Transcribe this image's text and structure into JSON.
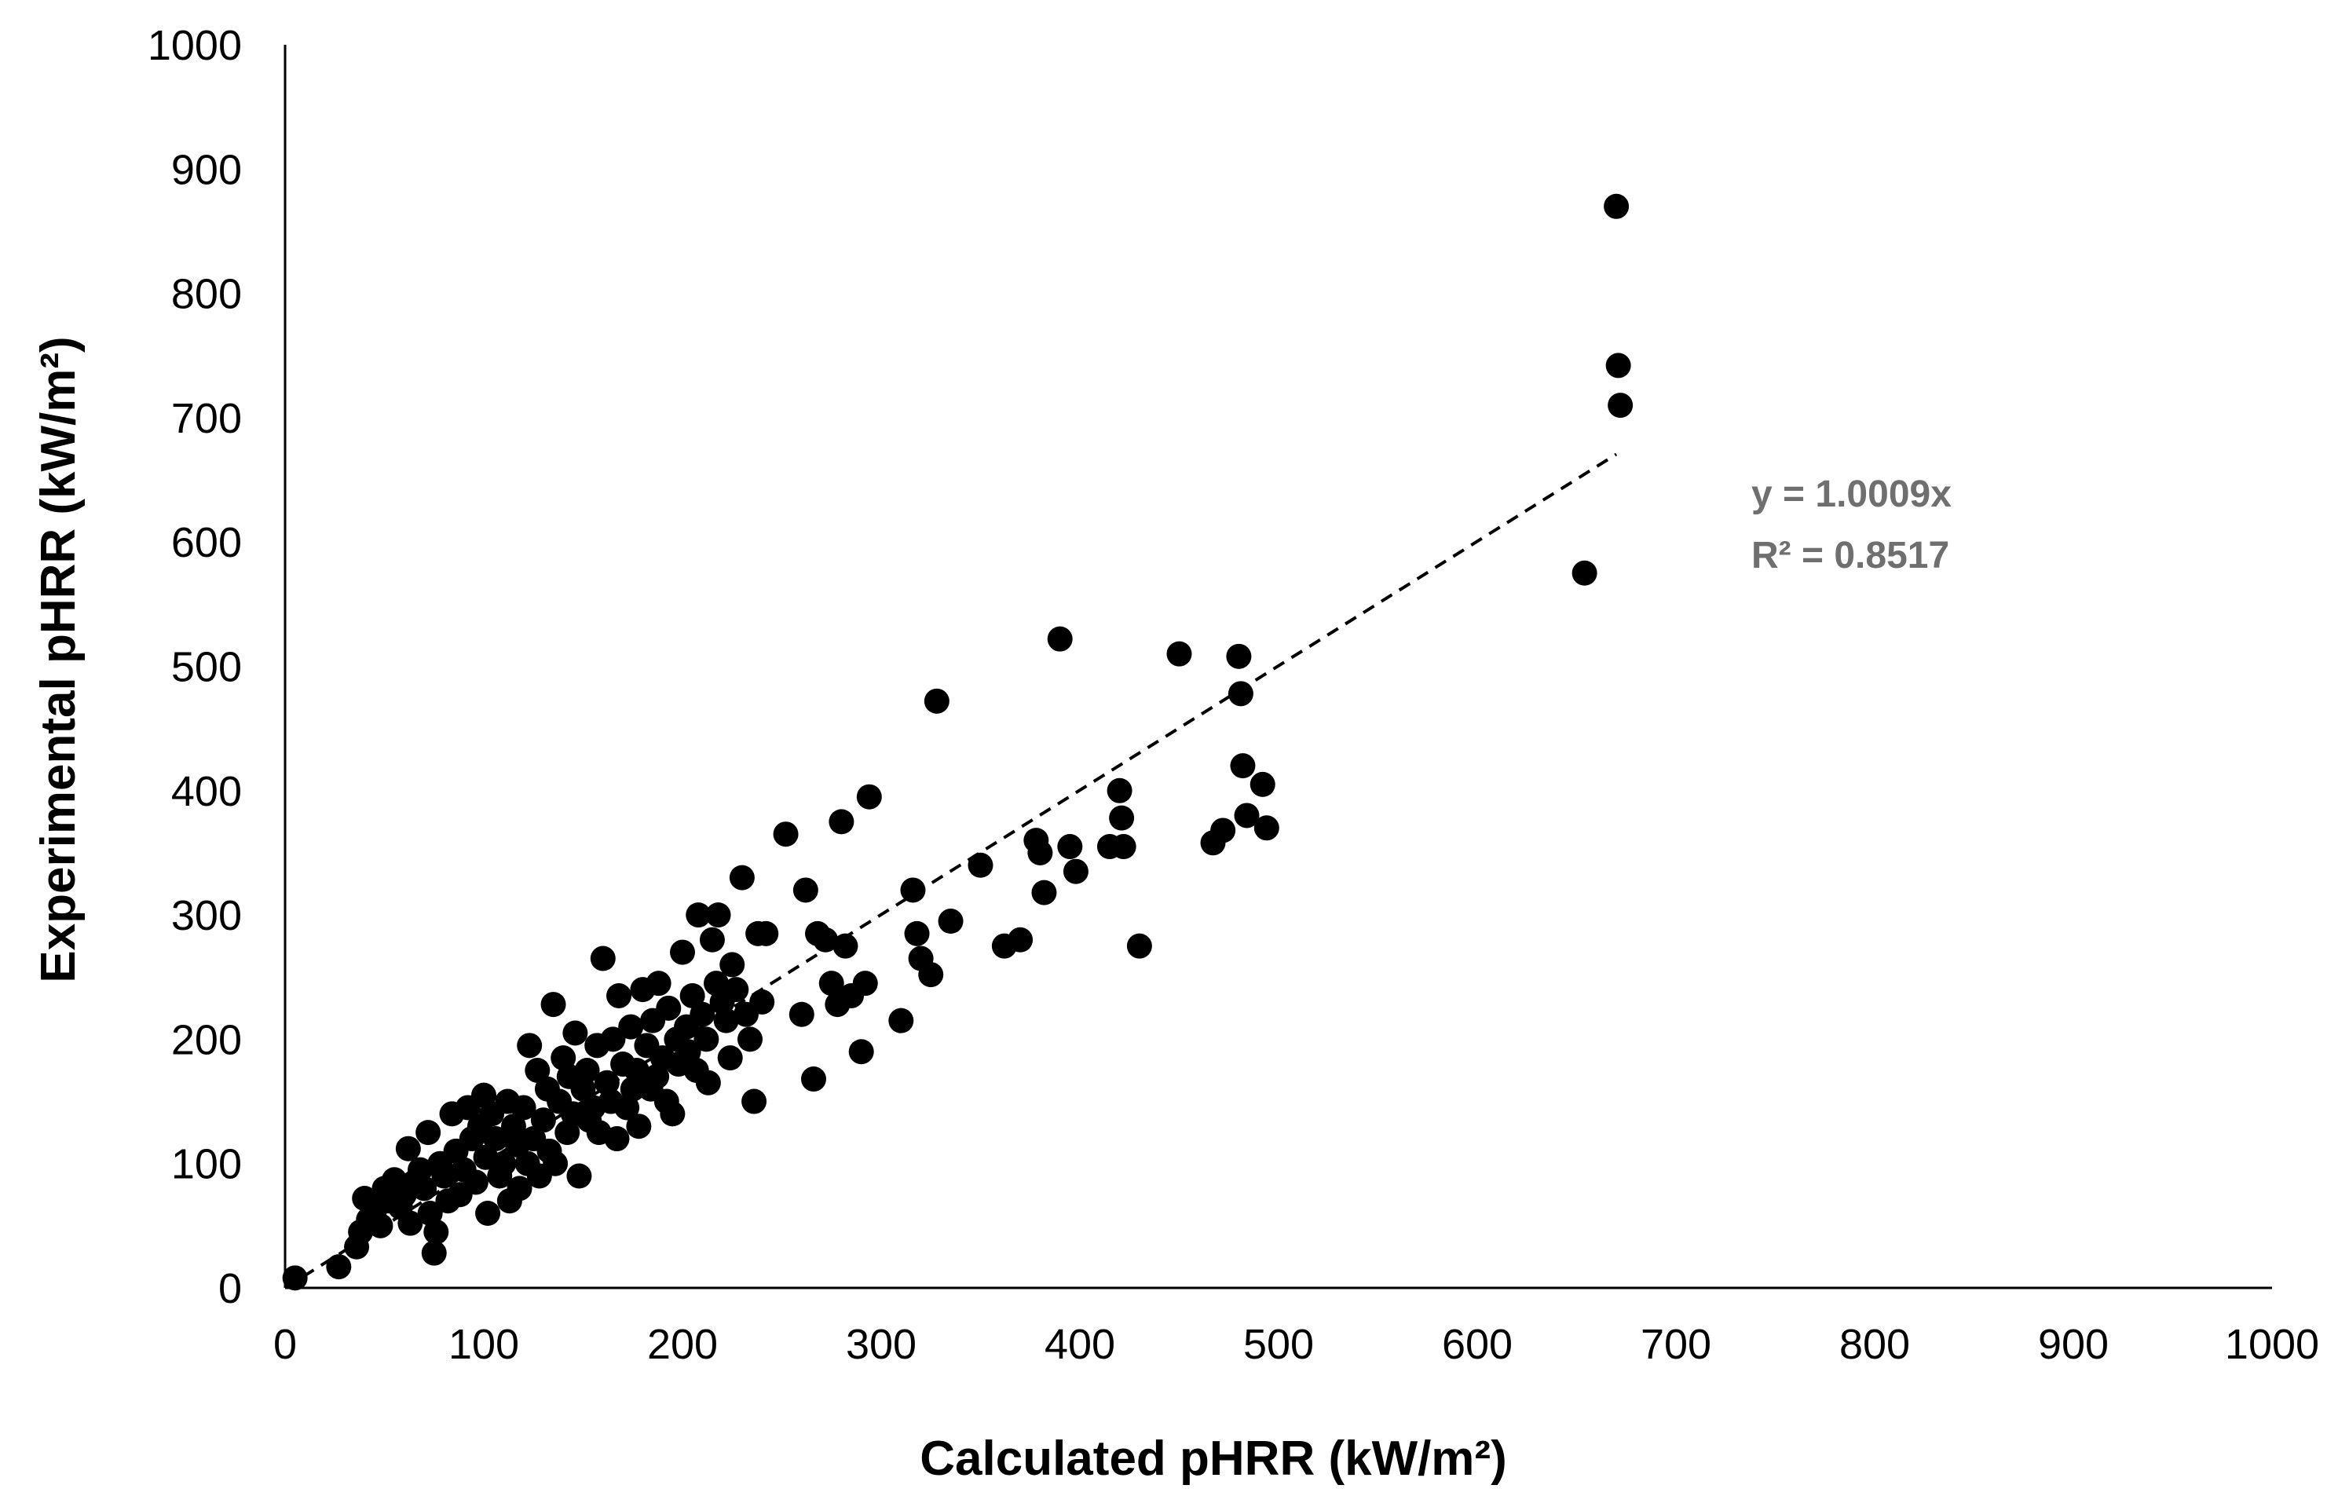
{
  "chart_data": {
    "type": "scatter",
    "title": "",
    "xlabel": "Calculated pHRR (kW/m²)",
    "ylabel": "Experimental pHRR (kW/m²)",
    "xlim": [
      0,
      1000
    ],
    "ylim": [
      0,
      1000
    ],
    "xticks": [
      "0",
      "100",
      "200",
      "300",
      "400",
      "500",
      "600",
      "700",
      "800",
      "900",
      "1000"
    ],
    "yticks": [
      "0",
      "100",
      "200",
      "300",
      "400",
      "500",
      "600",
      "700",
      "800",
      "900",
      "1000"
    ],
    "grid": false,
    "legend": "none",
    "marker_color": "#000000",
    "trendline": {
      "type": "linear-through-origin",
      "slope": 1.0009,
      "x_range": [
        0,
        670
      ],
      "style": "dashed",
      "equation": "y = 1.0009x",
      "r_squared": "R² = 0.8517"
    },
    "points": [
      [
        5,
        8
      ],
      [
        27,
        17
      ],
      [
        36,
        33
      ],
      [
        38,
        45
      ],
      [
        40,
        72
      ],
      [
        42,
        55
      ],
      [
        45,
        62
      ],
      [
        48,
        50
      ],
      [
        50,
        80
      ],
      [
        52,
        70
      ],
      [
        55,
        87
      ],
      [
        58,
        65
      ],
      [
        60,
        75
      ],
      [
        62,
        112
      ],
      [
        63,
        52
      ],
      [
        65,
        85
      ],
      [
        68,
        95
      ],
      [
        70,
        80
      ],
      [
        72,
        125
      ],
      [
        73,
        60
      ],
      [
        75,
        28
      ],
      [
        76,
        45
      ],
      [
        78,
        100
      ],
      [
        80,
        90
      ],
      [
        82,
        70
      ],
      [
        84,
        140
      ],
      [
        86,
        110
      ],
      [
        88,
        75
      ],
      [
        90,
        95
      ],
      [
        92,
        145
      ],
      [
        94,
        120
      ],
      [
        96,
        85
      ],
      [
        98,
        130
      ],
      [
        100,
        155
      ],
      [
        101,
        105
      ],
      [
        102,
        60
      ],
      [
        104,
        140
      ],
      [
        106,
        120
      ],
      [
        108,
        90
      ],
      [
        110,
        100
      ],
      [
        112,
        150
      ],
      [
        113,
        70
      ],
      [
        115,
        130
      ],
      [
        117,
        115
      ],
      [
        118,
        80
      ],
      [
        120,
        145
      ],
      [
        122,
        100
      ],
      [
        123,
        195
      ],
      [
        125,
        120
      ],
      [
        127,
        175
      ],
      [
        128,
        90
      ],
      [
        130,
        135
      ],
      [
        132,
        160
      ],
      [
        133,
        110
      ],
      [
        135,
        228
      ],
      [
        136,
        100
      ],
      [
        138,
        150
      ],
      [
        140,
        185
      ],
      [
        142,
        125
      ],
      [
        143,
        170
      ],
      [
        145,
        140
      ],
      [
        146,
        205
      ],
      [
        148,
        90
      ],
      [
        150,
        160
      ],
      [
        152,
        175
      ],
      [
        153,
        135
      ],
      [
        155,
        145
      ],
      [
        157,
        195
      ],
      [
        158,
        125
      ],
      [
        160,
        265
      ],
      [
        162,
        165
      ],
      [
        164,
        150
      ],
      [
        165,
        200
      ],
      [
        167,
        120
      ],
      [
        168,
        235
      ],
      [
        170,
        180
      ],
      [
        172,
        145
      ],
      [
        174,
        210
      ],
      [
        175,
        160
      ],
      [
        177,
        175
      ],
      [
        178,
        130
      ],
      [
        180,
        240
      ],
      [
        182,
        195
      ],
      [
        184,
        160
      ],
      [
        185,
        215
      ],
      [
        187,
        170
      ],
      [
        188,
        245
      ],
      [
        190,
        185
      ],
      [
        192,
        150
      ],
      [
        193,
        225
      ],
      [
        195,
        140
      ],
      [
        197,
        200
      ],
      [
        198,
        180
      ],
      [
        200,
        270
      ],
      [
        202,
        210
      ],
      [
        203,
        190
      ],
      [
        205,
        235
      ],
      [
        207,
        175
      ],
      [
        208,
        300
      ],
      [
        210,
        220
      ],
      [
        212,
        200
      ],
      [
        213,
        165
      ],
      [
        215,
        280
      ],
      [
        217,
        245
      ],
      [
        218,
        300
      ],
      [
        220,
        230
      ],
      [
        222,
        215
      ],
      [
        224,
        185
      ],
      [
        225,
        260
      ],
      [
        227,
        240
      ],
      [
        230,
        330
      ],
      [
        232,
        220
      ],
      [
        234,
        200
      ],
      [
        236,
        150
      ],
      [
        238,
        285
      ],
      [
        240,
        230
      ],
      [
        242,
        285
      ],
      [
        252,
        365
      ],
      [
        260,
        220
      ],
      [
        262,
        320
      ],
      [
        266,
        168
      ],
      [
        268,
        285
      ],
      [
        272,
        280
      ],
      [
        275,
        245
      ],
      [
        278,
        228
      ],
      [
        280,
        375
      ],
      [
        282,
        275
      ],
      [
        285,
        235
      ],
      [
        290,
        190
      ],
      [
        292,
        245
      ],
      [
        294,
        395
      ],
      [
        310,
        215
      ],
      [
        316,
        320
      ],
      [
        318,
        285
      ],
      [
        320,
        265
      ],
      [
        325,
        252
      ],
      [
        328,
        472
      ],
      [
        335,
        295
      ],
      [
        350,
        340
      ],
      [
        362,
        275
      ],
      [
        370,
        280
      ],
      [
        378,
        360
      ],
      [
        380,
        350
      ],
      [
        382,
        318
      ],
      [
        390,
        522
      ],
      [
        395,
        355
      ],
      [
        398,
        335
      ],
      [
        415,
        355
      ],
      [
        420,
        400
      ],
      [
        421,
        378
      ],
      [
        422,
        355
      ],
      [
        430,
        275
      ],
      [
        450,
        510
      ],
      [
        467,
        358
      ],
      [
        472,
        368
      ],
      [
        480,
        508
      ],
      [
        481,
        478
      ],
      [
        482,
        420
      ],
      [
        484,
        380
      ],
      [
        492,
        405
      ],
      [
        494,
        370
      ],
      [
        654,
        575
      ],
      [
        670,
        870
      ],
      [
        671,
        742
      ],
      [
        672,
        710
      ]
    ]
  }
}
